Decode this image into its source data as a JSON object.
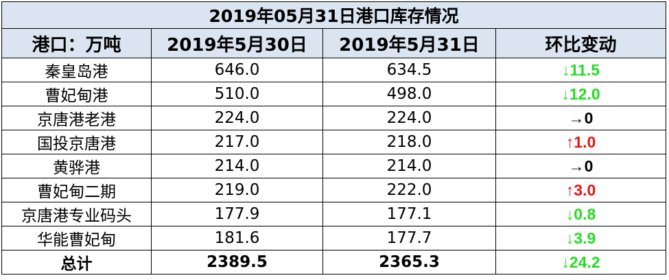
{
  "table": {
    "title": "2019年05月31日港口库存情况",
    "header": [
      "港口：万吨",
      "2019年5月30日",
      "2019年5月31日",
      "环比变动"
    ],
    "rows": [
      [
        "秦皇岛港",
        "646.0",
        "634.5",
        "↓11.5"
      ],
      [
        "曹妃甸港",
        "510.0",
        "498.0",
        "↓12.0"
      ],
      [
        "京唐港老港",
        "224.0",
        "224.0",
        "→0"
      ],
      [
        "国投京唐港",
        "217.0",
        "218.0",
        "↑1.0"
      ],
      [
        "黄骅港",
        "214.0",
        "214.0",
        "→0"
      ],
      [
        "曹妃甸二期",
        "219.0",
        "222.0",
        "↑3.0"
      ],
      [
        "京唐港专业码头",
        "177.9",
        "177.1",
        "↓0.8"
      ],
      [
        "华能曹妃甸",
        "181.6",
        "177.7",
        "↓3.9"
      ]
    ],
    "total": [
      "总计",
      "2389.5",
      "2365.3",
      "↓24.2"
    ],
    "change_colors": [
      "#22dd22",
      "#22dd22",
      "#000000",
      "#ee1111",
      "#000000",
      "#ee1111",
      "#22dd22",
      "#22dd22"
    ],
    "total_change_color": "#22dd22"
  }
}
